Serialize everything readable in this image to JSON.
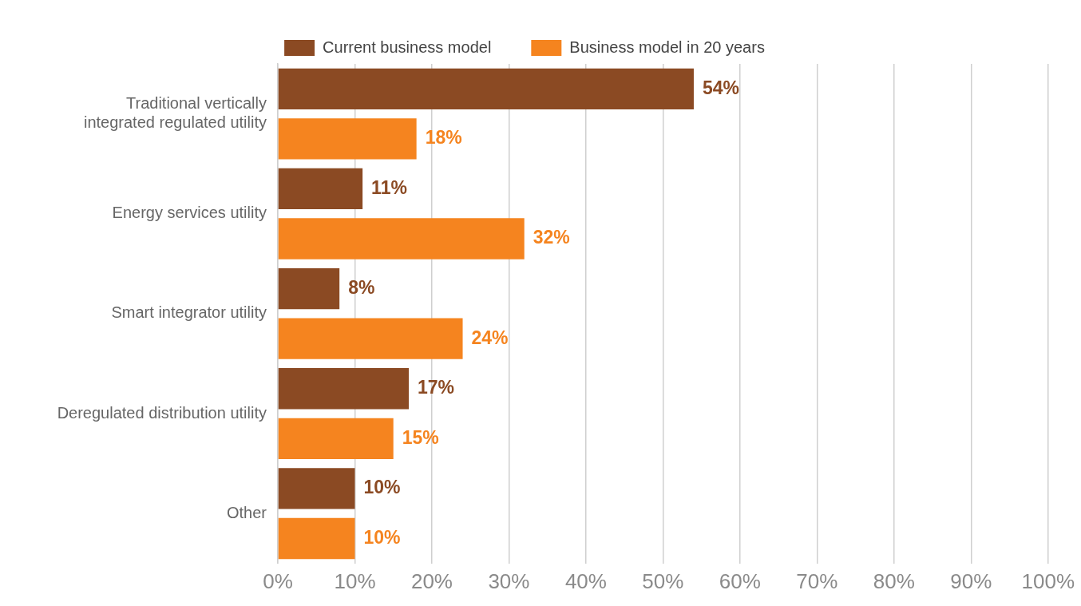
{
  "chart_data": {
    "type": "bar",
    "orientation": "horizontal",
    "categories": [
      "Traditional vertically integrated regulated utility",
      "Energy services utility",
      "Smart integrator utility",
      "Deregulated distribution utility",
      "Other"
    ],
    "series": [
      {
        "name": "Current business model",
        "color": "#8b4a23",
        "values": [
          54,
          11,
          8,
          17,
          10
        ],
        "value_labels": [
          "54%",
          "11%",
          "8%",
          "17%",
          "10%"
        ]
      },
      {
        "name": "Business model in 20 years",
        "color": "#f5841f",
        "values": [
          18,
          32,
          24,
          15,
          10
        ],
        "value_labels": [
          "18%",
          "32%",
          "24%",
          "15%",
          "10%"
        ]
      }
    ],
    "xlim": [
      0,
      100
    ],
    "xticks": [
      {
        "value": 0,
        "label": "0%"
      },
      {
        "value": 10,
        "label": "10%"
      },
      {
        "value": 20,
        "label": "20%"
      },
      {
        "value": 30,
        "label": "30%"
      },
      {
        "value": 40,
        "label": "40%"
      },
      {
        "value": 50,
        "label": "50%"
      },
      {
        "value": 60,
        "label": "60%"
      },
      {
        "value": 70,
        "label": "70%"
      },
      {
        "value": 80,
        "label": "80%"
      },
      {
        "value": 90,
        "label": "90%"
      },
      {
        "value": 100,
        "label": "100%"
      }
    ],
    "grid": "x",
    "legend": "top"
  }
}
